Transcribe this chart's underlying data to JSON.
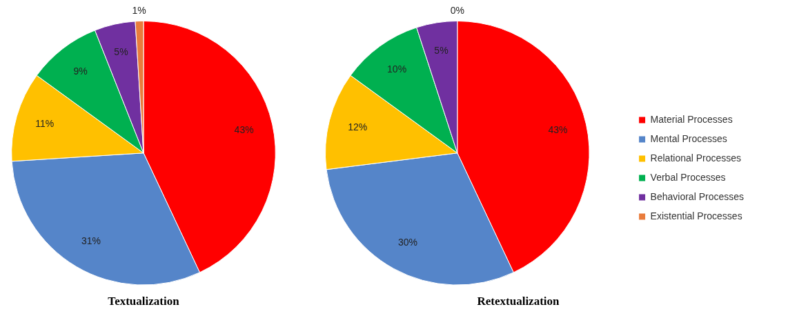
{
  "chart_data": [
    {
      "type": "pie",
      "title": "Textualization",
      "categories": [
        null,
        null,
        null,
        null,
        null,
        null
      ],
      "values": [
        43,
        31,
        11,
        9,
        5,
        1
      ],
      "value_labels": [
        "43%",
        "31%",
        "11%",
        "9%",
        "5%",
        "1%"
      ],
      "colors": [
        "#ff0000",
        "#5585c9",
        "#ffc000",
        "#00b050",
        "#7030a0",
        "#e97c3c"
      ],
      "legend": false
    },
    {
      "type": "pie",
      "title": "Retextualization",
      "categories": [
        "Material Processes",
        "Mental Processes",
        "Relational Processes",
        "Verbal Processes",
        "Behavioral Processes",
        "Existential Processes"
      ],
      "values": [
        43,
        30,
        12,
        10,
        5,
        0
      ],
      "value_labels": [
        "43%",
        "30%",
        "12%",
        "10%",
        "5%",
        "0%"
      ],
      "colors": [
        "#ff0000",
        "#5585c9",
        "#ffc000",
        "#00b050",
        "#7030a0",
        "#e97c3c"
      ],
      "legend": "right"
    }
  ]
}
